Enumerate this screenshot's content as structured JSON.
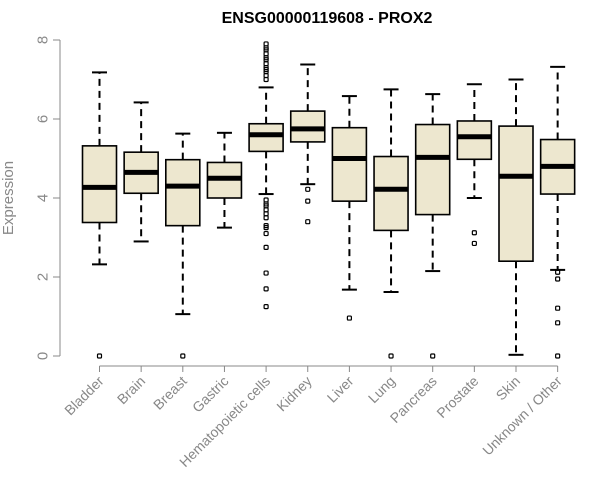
{
  "chart_data": {
    "type": "boxplot",
    "title": "ENSG00000119608 - PROX2",
    "xlabel": "",
    "ylabel": "Expression",
    "ylim": [
      0,
      8
    ],
    "yticks": [
      0,
      2,
      4,
      6,
      8
    ],
    "grid": false,
    "legend": "none",
    "categories": [
      "Bladder",
      "Brain",
      "Breast",
      "Gastric",
      "Hematopoietic cells",
      "Kidney",
      "Liver",
      "Lung",
      "Pancreas",
      "Prostate",
      "Skin",
      "Unknown / Other"
    ],
    "boxes": [
      {
        "category": "Bladder",
        "whisker_low": 2.32,
        "q1": 3.38,
        "median": 4.27,
        "q3": 5.32,
        "whisker_high": 7.18,
        "outliers": [
          0.0
        ]
      },
      {
        "category": "Brain",
        "whisker_low": 2.9,
        "q1": 4.12,
        "median": 4.65,
        "q3": 5.16,
        "whisker_high": 6.42,
        "outliers": []
      },
      {
        "category": "Breast",
        "whisker_low": 1.06,
        "q1": 3.3,
        "median": 4.3,
        "q3": 4.97,
        "whisker_high": 5.63,
        "outliers": [
          0.0
        ]
      },
      {
        "category": "Gastric",
        "whisker_low": 3.25,
        "q1": 4.0,
        "median": 4.5,
        "q3": 4.9,
        "whisker_high": 5.65,
        "outliers": []
      },
      {
        "category": "Hematopoietic cells",
        "whisker_low": 4.1,
        "q1": 5.18,
        "median": 5.6,
        "q3": 5.88,
        "whisker_high": 6.8,
        "outliers": [
          1.25,
          1.7,
          2.1,
          2.75,
          3.1,
          3.25,
          3.3,
          3.5,
          3.6,
          3.7,
          3.8,
          3.85,
          3.95,
          7.0,
          7.1,
          7.2,
          7.25,
          7.3,
          7.4,
          7.5,
          7.55,
          7.65,
          7.75,
          7.8,
          7.9
        ]
      },
      {
        "category": "Kidney",
        "whisker_low": 4.35,
        "q1": 5.42,
        "median": 5.75,
        "q3": 6.2,
        "whisker_high": 7.38,
        "outliers": [
          3.4,
          3.92,
          4.22
        ]
      },
      {
        "category": "Liver",
        "whisker_low": 1.68,
        "q1": 3.92,
        "median": 5.0,
        "q3": 5.78,
        "whisker_high": 6.58,
        "outliers": [
          0.96
        ]
      },
      {
        "category": "Lung",
        "whisker_low": 1.62,
        "q1": 3.18,
        "median": 4.22,
        "q3": 5.05,
        "whisker_high": 6.75,
        "outliers": [
          0.0
        ]
      },
      {
        "category": "Pancreas",
        "whisker_low": 2.15,
        "q1": 3.58,
        "median": 5.03,
        "q3": 5.86,
        "whisker_high": 6.63,
        "outliers": [
          0.0
        ]
      },
      {
        "category": "Prostate",
        "whisker_low": 4.0,
        "q1": 4.98,
        "median": 5.55,
        "q3": 5.95,
        "whisker_high": 6.88,
        "outliers": [
          2.85,
          3.12
        ]
      },
      {
        "category": "Skin",
        "whisker_low": 0.03,
        "q1": 2.4,
        "median": 4.55,
        "q3": 5.82,
        "whisker_high": 7.0,
        "outliers": []
      },
      {
        "category": "Unknown / Other",
        "whisker_low": 2.18,
        "q1": 4.1,
        "median": 4.8,
        "q3": 5.48,
        "whisker_high": 7.32,
        "outliers": [
          0.0,
          0.84,
          1.21,
          1.95,
          2.12
        ]
      }
    ]
  },
  "colors": {
    "box_fill": "#ede7cf",
    "stroke": "#000000",
    "axis": "#888888",
    "tick_text": "#888888",
    "title_text": "#000000"
  }
}
